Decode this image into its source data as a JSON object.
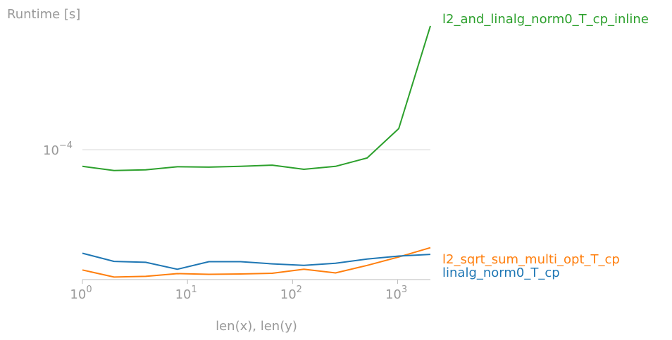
{
  "chart_data": {
    "type": "line",
    "ylabel": "Runtime [s]",
    "xlabel": "len(x), len(y)",
    "xscale": "log",
    "yscale": "log",
    "xlim": [
      1,
      2048
    ],
    "ylim": [
      2.95e-05,
      0.000335
    ],
    "grid": "horizontal",
    "legend": "inline-right",
    "x_ticks": [
      {
        "base": "10",
        "exp": "0",
        "value": 1
      },
      {
        "base": "10",
        "exp": "1",
        "value": 10
      },
      {
        "base": "10",
        "exp": "2",
        "value": 100
      },
      {
        "base": "10",
        "exp": "3",
        "value": 1000
      }
    ],
    "y_ticks": [
      {
        "base": "10",
        "exp": "−4",
        "value": 0.0001
      }
    ],
    "x": [
      1,
      2,
      4,
      8,
      16,
      32,
      64,
      128,
      256,
      512,
      1024,
      2048
    ],
    "series": [
      {
        "name": "l2_and_linalg_norm0_T_cp_inline",
        "color": "#2ca02c",
        "values": [
          8.55e-05,
          8.22e-05,
          8.28e-05,
          8.52e-05,
          8.49e-05,
          8.55e-05,
          8.65e-05,
          8.32e-05,
          8.55e-05,
          9.25e-05,
          0.000122,
          0.00032
        ]
      },
      {
        "name": "l2_sqrt_sum_multi_opt_T_cp",
        "color": "#ff7f0e",
        "values": [
          3.23e-05,
          3.02e-05,
          3.04e-05,
          3.12e-05,
          3.1e-05,
          3.11e-05,
          3.13e-05,
          3.25e-05,
          3.14e-05,
          3.37e-05,
          3.65e-05,
          3.98e-05
        ]
      },
      {
        "name": "linalg_norm0_T_cp",
        "color": "#1f77b4",
        "values": [
          3.78e-05,
          3.5e-05,
          3.47e-05,
          3.25e-05,
          3.49e-05,
          3.49e-05,
          3.42e-05,
          3.37e-05,
          3.44e-05,
          3.58e-05,
          3.68e-05,
          3.74e-05
        ]
      }
    ]
  }
}
